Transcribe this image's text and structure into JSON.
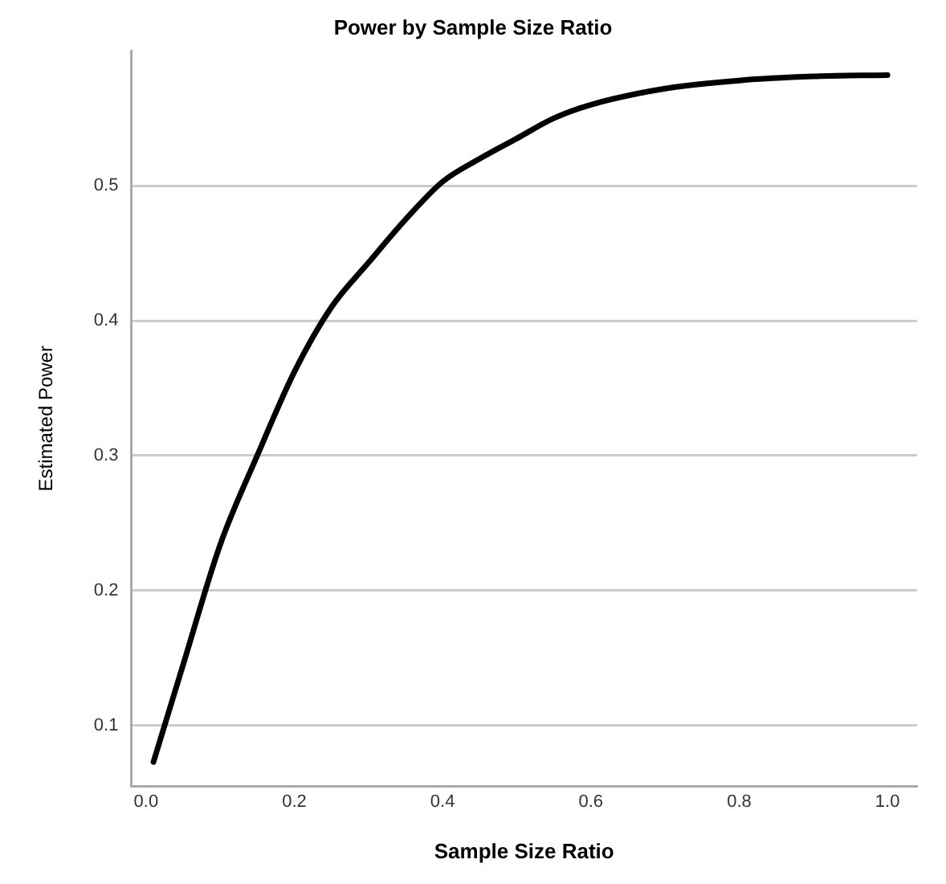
{
  "chart_data": {
    "type": "line",
    "title": "Power by Sample Size Ratio",
    "xlabel": "Sample Size Ratio",
    "ylabel": "Estimated Power",
    "series": [
      {
        "color": "#000000",
        "x": [
          0.01,
          0.05,
          0.1,
          0.15,
          0.2,
          0.25,
          0.3,
          0.35,
          0.4,
          0.45,
          0.5,
          0.55,
          0.6,
          0.7,
          0.8,
          0.9,
          1.0
        ],
        "values": [
          0.073,
          0.145,
          0.234,
          0.3,
          0.362,
          0.41,
          0.443,
          0.475,
          0.503,
          0.52,
          0.535,
          0.55,
          0.56,
          0.572,
          0.578,
          0.581,
          0.582
        ]
      }
    ],
    "xlim": [
      -0.02,
      1.04
    ],
    "xticks": [
      {
        "value": 0,
        "label": "0.0"
      },
      0.2,
      0.4,
      0.6,
      0.8,
      {
        "value": 1,
        "label": "1.0"
      }
    ],
    "ylim": [
      0.055,
      0.6
    ],
    "yticks": [
      0.1,
      0.2,
      0.3,
      0.4,
      0.5
    ],
    "grid": "y",
    "legend": false,
    "marker": "none",
    "line_style": "solid"
  }
}
